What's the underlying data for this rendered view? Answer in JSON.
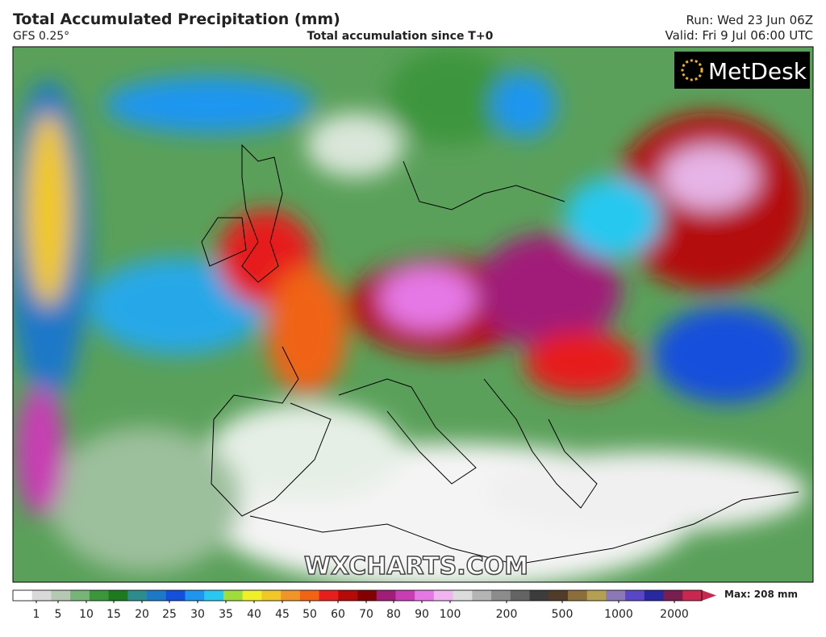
{
  "header": {
    "title": "Total Accumulated Precipitation (mm)",
    "model": "GFS 0.25°",
    "subtitle": "Total accumulation since T+0",
    "run": "Run: Wed 23 Jun 06Z",
    "valid": "Valid: Fri 9 Jul 06:00 UTC"
  },
  "logo": "MetDesk",
  "watermark": "WXCHARTS.COM",
  "colorbar": {
    "ticks": [
      1,
      5,
      10,
      15,
      20,
      25,
      30,
      35,
      40,
      45,
      50,
      60,
      70,
      80,
      90,
      100,
      200,
      500,
      1000,
      2000
    ],
    "colors": [
      "#ffffff",
      "#d9d9d9",
      "#b4c8b4",
      "#78b478",
      "#3c963c",
      "#1e7a1e",
      "#2d8c8c",
      "#1e78c8",
      "#1450dc",
      "#1e96f0",
      "#28c8f0",
      "#a0dc3c",
      "#f0f028",
      "#f0c828",
      "#f09628",
      "#f06414",
      "#e61e1e",
      "#b40a0a",
      "#820000",
      "#a01e78",
      "#c83cb4",
      "#e678e6",
      "#f0b4f0",
      "#dcdcdc",
      "#b4b4b4",
      "#8c8c8c",
      "#646464",
      "#3c3c3c",
      "#503c28",
      "#8c6e3c",
      "#b4a050",
      "#8c78b4",
      "#5a46c8",
      "#2828a0",
      "#781e50",
      "#c82850"
    ],
    "max_label": "Max: 208 mm"
  }
}
